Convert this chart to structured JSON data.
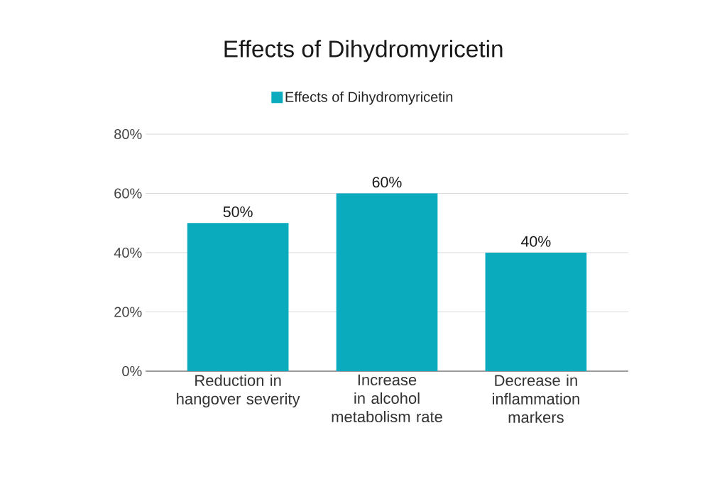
{
  "chart_data": {
    "type": "bar",
    "title": "Effects of Dihydromyricetin",
    "categories": [
      "Reduction in hangover severity",
      "Increase in alcohol metabolism rate",
      "Decrease in inflammation markers"
    ],
    "series": [
      {
        "name": "Effects of Dihydromyricetin",
        "color": "#0aabbd",
        "values": [
          50,
          60,
          40
        ],
        "value_labels": [
          "50%",
          "60%",
          "40%"
        ]
      }
    ],
    "ylim": [
      0,
      80
    ],
    "yticks": [
      {
        "value": 0,
        "label": "0%"
      },
      {
        "value": 20,
        "label": "20%"
      },
      {
        "value": 40,
        "label": "40%"
      },
      {
        "value": 60,
        "label": "60%"
      },
      {
        "value": 80,
        "label": "80%"
      }
    ],
    "grid": "y",
    "legend": "top"
  }
}
